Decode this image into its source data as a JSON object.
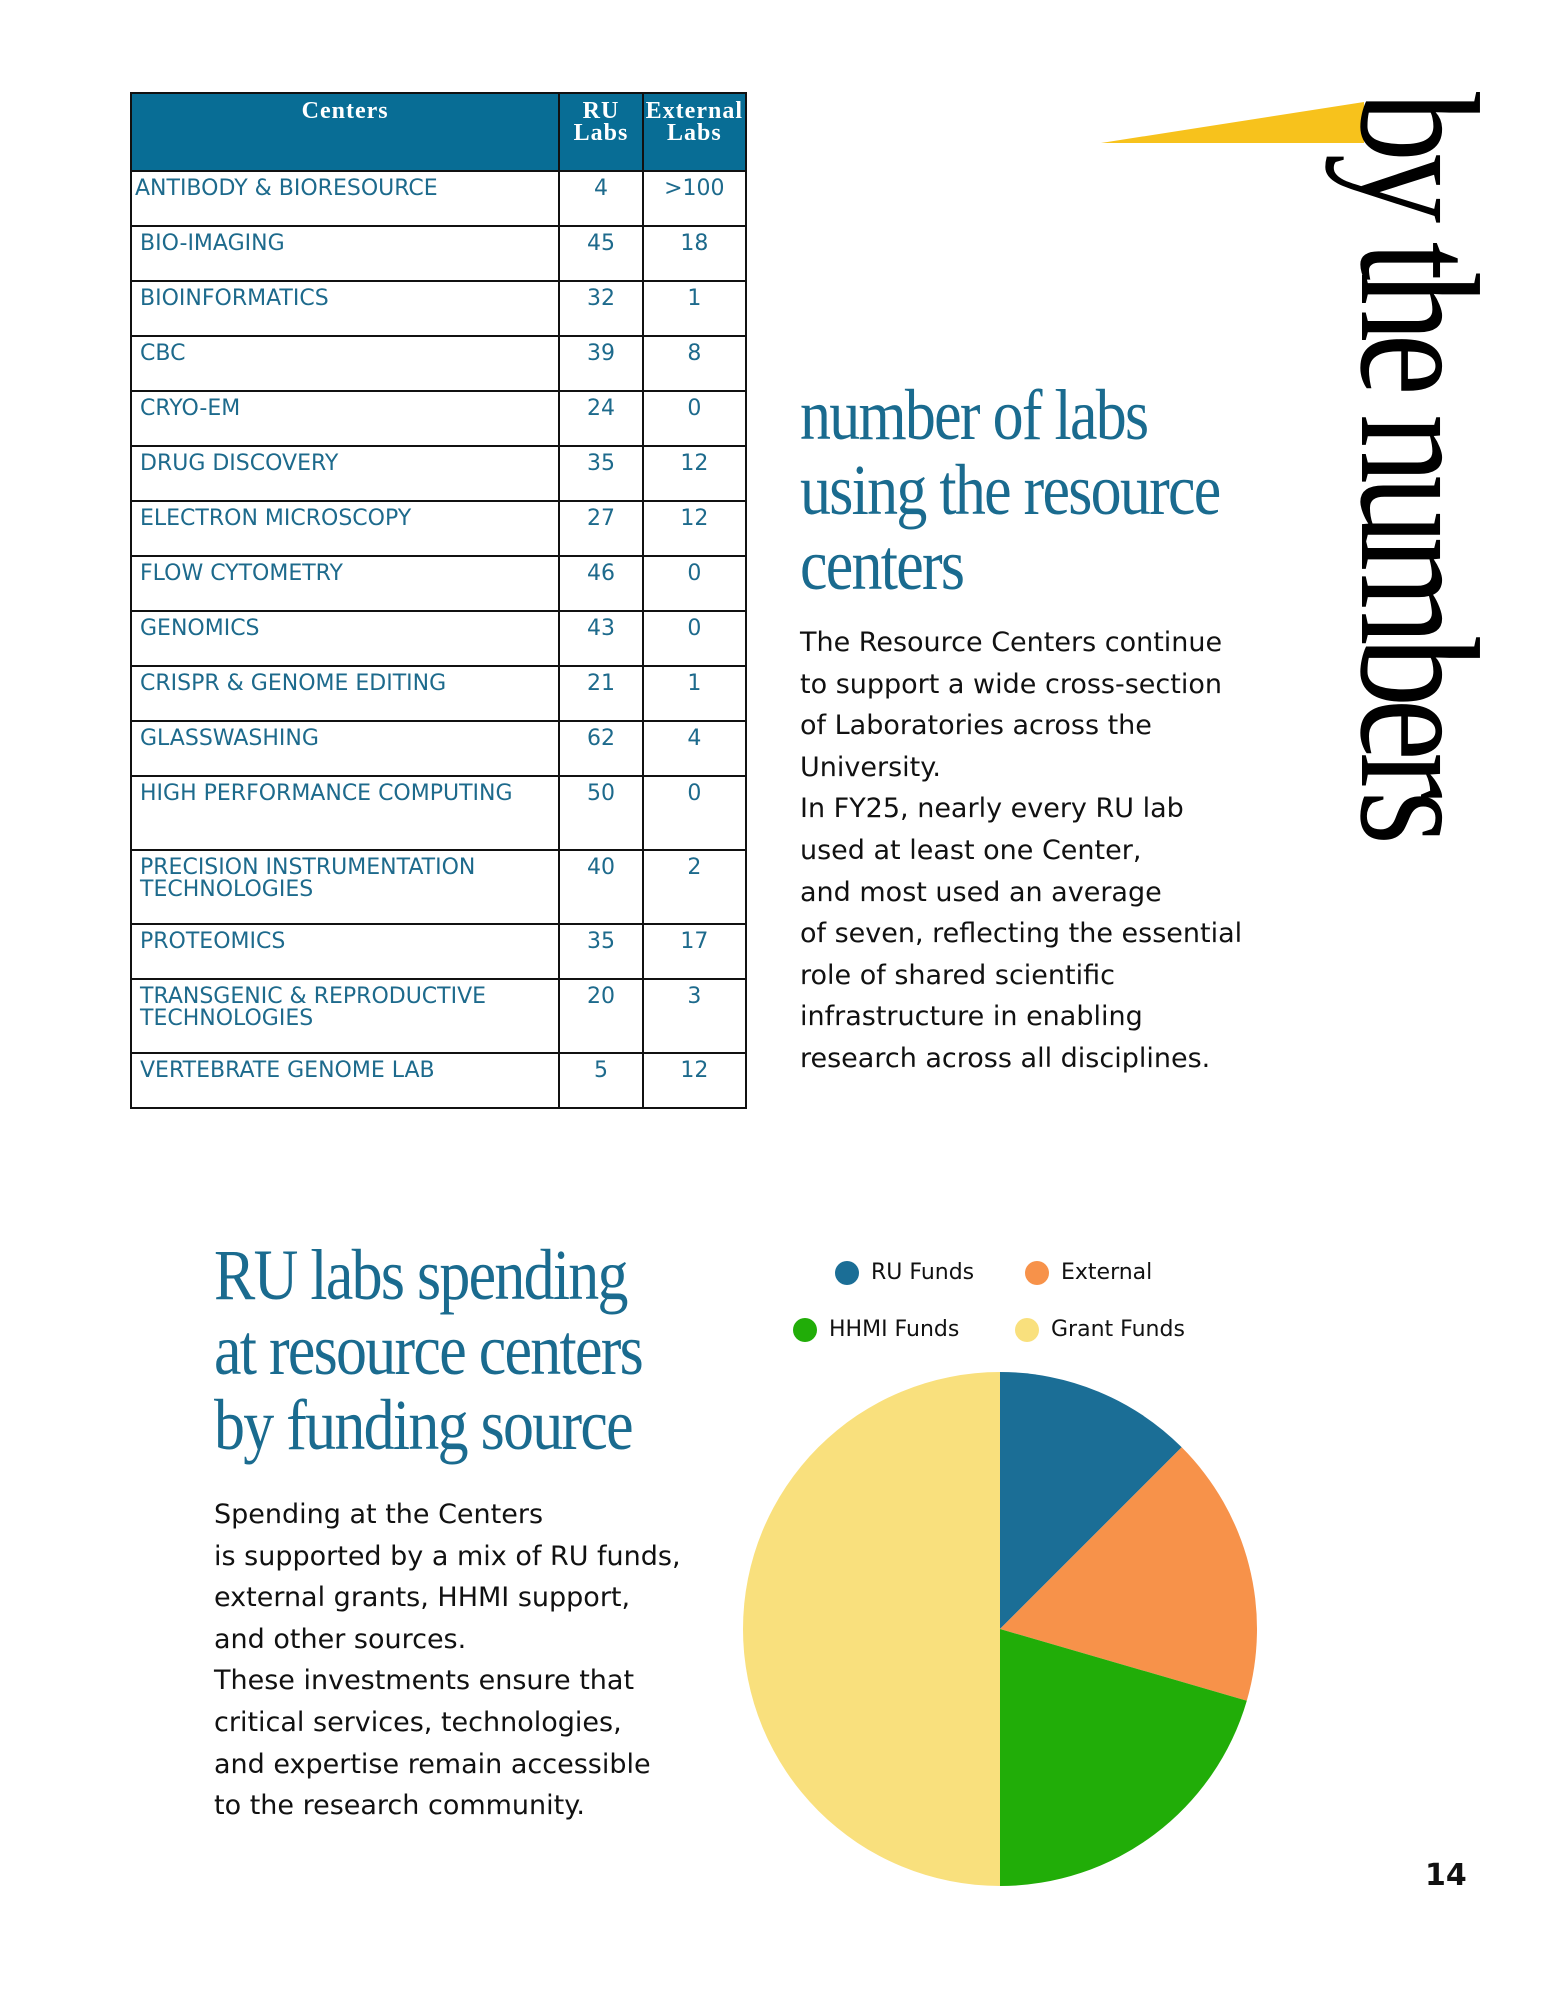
{
  "table": {
    "headers": {
      "centers": "Centers",
      "ru_labs": "RU Labs",
      "external_labs": "External Labs"
    },
    "rows": [
      {
        "center": "ANTIBODY & BIORESOURCE",
        "ru": "4",
        "ext": ">100"
      },
      {
        "center": "BIO-IMAGING",
        "ru": "45",
        "ext": "18"
      },
      {
        "center": "BIOINFORMATICS",
        "ru": "32",
        "ext": "1"
      },
      {
        "center": "CBC",
        "ru": "39",
        "ext": "8"
      },
      {
        "center": "CRYO-EM",
        "ru": "24",
        "ext": "0"
      },
      {
        "center": "DRUG DISCOVERY",
        "ru": "35",
        "ext": "12"
      },
      {
        "center": "ELECTRON MICROSCOPY",
        "ru": "27",
        "ext": "12"
      },
      {
        "center": "FLOW CYTOMETRY",
        "ru": "46",
        "ext": "0"
      },
      {
        "center": "GENOMICS",
        "ru": "43",
        "ext": "0"
      },
      {
        "center": "CRISPR & GENOME EDITING",
        "ru": "21",
        "ext": "1"
      },
      {
        "center": "GLASSWASHING",
        "ru": "62",
        "ext": "4"
      },
      {
        "center": "HIGH PERFORMANCE COMPUTING",
        "ru": "50",
        "ext": "0"
      },
      {
        "center": "PRECISION INSTRUMENTATION TECHNOLOGIES",
        "ru": "40",
        "ext": "2"
      },
      {
        "center": "PROTEOMICS",
        "ru": "35",
        "ext": "17"
      },
      {
        "center": "TRANSGENIC & REPRODUCTIVE TECHNOLOGIES",
        "ru": "20",
        "ext": "3"
      },
      {
        "center": "VERTEBRATE GENOME LAB",
        "ru": "5",
        "ext": "12"
      }
    ]
  },
  "side_title": "by the numbers",
  "labs_section": {
    "heading_lines": [
      "number of  labs",
      "using the resource",
      "centers"
    ],
    "body_lines": [
      "The Resource Centers continue",
      "to support a wide cross-section",
      "of Laboratories across the",
      "University.",
      "In FY25, nearly every RU lab",
      "used at least one Center,",
      "and most used an average",
      "of seven, reflecting the essential",
      "role of shared scientific",
      "infrastructure in enabling",
      "research across all disciplines."
    ]
  },
  "spending_section": {
    "heading_lines": [
      "RU labs spending",
      "at resource centers",
      "by funding source"
    ],
    "body_lines": [
      "Spending at the Centers",
      "is supported by a mix of RU funds,",
      "external grants, HHMI support,",
      "and other sources.",
      "These investments ensure that",
      "critical services, technologies,",
      "and expertise remain accessible",
      "to the research community."
    ]
  },
  "chart_data": {
    "type": "pie",
    "legend_position": "top",
    "slices": [
      {
        "label": "RU Funds",
        "value": 12.5,
        "color": "#1b6e96"
      },
      {
        "label": "External",
        "value": 17,
        "color": "#f7924a"
      },
      {
        "label": "HHMI Funds",
        "value": 20.5,
        "color": "#21ad08"
      },
      {
        "label": "Grant Funds",
        "value": 50,
        "color": "#f9e07d"
      }
    ]
  },
  "colors": {
    "accent_blue": "#086d95",
    "accent_yellow": "#f7c21c"
  },
  "page_number": "14"
}
